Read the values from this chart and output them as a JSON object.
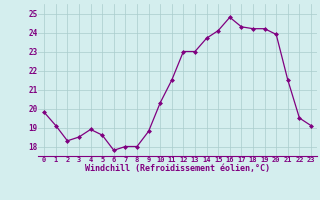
{
  "x": [
    0,
    1,
    2,
    3,
    4,
    5,
    6,
    7,
    8,
    9,
    10,
    11,
    12,
    13,
    14,
    15,
    16,
    17,
    18,
    19,
    20,
    21,
    22,
    23
  ],
  "y": [
    19.8,
    19.1,
    18.3,
    18.5,
    18.9,
    18.6,
    17.8,
    18.0,
    18.0,
    18.8,
    20.3,
    21.5,
    23.0,
    23.0,
    23.7,
    24.1,
    24.8,
    24.3,
    24.2,
    24.2,
    23.9,
    21.5,
    19.5,
    19.1
  ],
  "line_color": "#800080",
  "marker": "D",
  "marker_size": 2,
  "bg_color": "#d4eeee",
  "grid_color": "#aacccc",
  "xlabel": "Windchill (Refroidissement éolien,°C)",
  "xlabel_color": "#800080",
  "tick_color": "#800080",
  "ylim": [
    17.5,
    25.5
  ],
  "yticks": [
    18,
    19,
    20,
    21,
    22,
    23,
    24,
    25
  ],
  "xticks": [
    0,
    1,
    2,
    3,
    4,
    5,
    6,
    7,
    8,
    9,
    10,
    11,
    12,
    13,
    14,
    15,
    16,
    17,
    18,
    19,
    20,
    21,
    22,
    23
  ],
  "xlim": [
    -0.5,
    23.5
  ]
}
